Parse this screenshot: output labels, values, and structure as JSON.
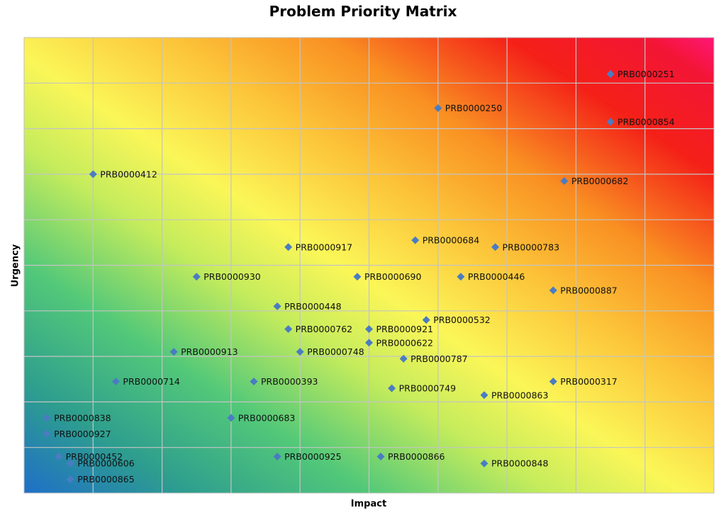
{
  "chart_data": {
    "type": "scatter",
    "title": "Problem Priority Matrix",
    "xlabel": "Impact",
    "ylabel": "Urgency",
    "xlim": [
      0,
      10
    ],
    "ylim": [
      0,
      10
    ],
    "grid": true,
    "legend": "none",
    "x_tick_labels_shown": false,
    "y_tick_labels_shown": false,
    "background": "diagonal heat gradient (blue/green low, yellow middle, red/magenta high)",
    "marker_color": "#4a7cc2",
    "points": [
      {
        "label": "PRB0000251",
        "x": 8.5,
        "y": 9.2
      },
      {
        "label": "PRB0000250",
        "x": 6.0,
        "y": 8.45
      },
      {
        "label": "PRB0000854",
        "x": 8.5,
        "y": 8.15
      },
      {
        "label": "PRB0000412",
        "x": 1.0,
        "y": 7.0
      },
      {
        "label": "PRB0000682",
        "x": 7.83,
        "y": 6.85
      },
      {
        "label": "PRB0000684",
        "x": 5.67,
        "y": 5.55
      },
      {
        "label": "PRB0000917",
        "x": 3.83,
        "y": 5.4
      },
      {
        "label": "PRB0000783",
        "x": 6.83,
        "y": 5.4
      },
      {
        "label": "PRB0000930",
        "x": 2.5,
        "y": 4.75
      },
      {
        "label": "PRB0000690",
        "x": 4.83,
        "y": 4.75
      },
      {
        "label": "PRB0000446",
        "x": 6.33,
        "y": 4.75
      },
      {
        "label": "PRB0000887",
        "x": 7.67,
        "y": 4.45
      },
      {
        "label": "PRB0000448",
        "x": 3.67,
        "y": 4.1
      },
      {
        "label": "PRB0000532",
        "x": 5.83,
        "y": 3.8
      },
      {
        "label": "PRB0000762",
        "x": 3.83,
        "y": 3.6
      },
      {
        "label": "PRB0000921",
        "x": 5.0,
        "y": 3.6
      },
      {
        "label": "PRB0000622",
        "x": 5.0,
        "y": 3.3
      },
      {
        "label": "PRB0000913",
        "x": 2.17,
        "y": 3.1
      },
      {
        "label": "PRB0000748",
        "x": 4.0,
        "y": 3.1
      },
      {
        "label": "PRB0000787",
        "x": 5.5,
        "y": 2.95
      },
      {
        "label": "PRB0000714",
        "x": 1.33,
        "y": 2.45
      },
      {
        "label": "PRB0000393",
        "x": 3.33,
        "y": 2.45
      },
      {
        "label": "PRB0000317",
        "x": 7.67,
        "y": 2.45
      },
      {
        "label": "PRB0000749",
        "x": 5.33,
        "y": 2.3
      },
      {
        "label": "PRB0000863",
        "x": 6.67,
        "y": 2.15
      },
      {
        "label": "PRB0000838",
        "x": 0.33,
        "y": 1.65
      },
      {
        "label": "PRB0000683",
        "x": 3.0,
        "y": 1.65
      },
      {
        "label": "PRB0000927",
        "x": 0.33,
        "y": 1.3
      },
      {
        "label": "PRB0000452",
        "x": 0.5,
        "y": 0.8
      },
      {
        "label": "PRB0000925",
        "x": 3.67,
        "y": 0.8
      },
      {
        "label": "PRB0000866",
        "x": 5.17,
        "y": 0.8
      },
      {
        "label": "PRB0000606",
        "x": 0.67,
        "y": 0.65
      },
      {
        "label": "PRB0000848",
        "x": 6.67,
        "y": 0.65
      },
      {
        "label": "PRB0000865",
        "x": 0.67,
        "y": 0.3
      }
    ]
  }
}
